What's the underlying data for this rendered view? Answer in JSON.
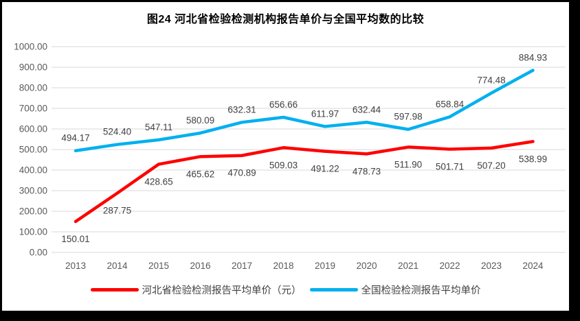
{
  "style": {
    "frame_border_color": "#000000",
    "background_color": "#ffffff",
    "grid_color": "#d9d9d9",
    "tick_text_color": "#595959",
    "data_label_color": "#404040",
    "title_color": "#000000"
  },
  "chart_data": {
    "type": "line",
    "title": "图24 河北省检验检测机构报告单价与全国平均数的比较",
    "categories": [
      "2013",
      "2014",
      "2015",
      "2016",
      "2017",
      "2018",
      "2019",
      "2020",
      "2021",
      "2022",
      "2023",
      "2024"
    ],
    "series": [
      {
        "name": "河北省检验检测报告平均单价（元）",
        "color": "#ff0000",
        "label_position": "below",
        "values": [
          150.01,
          287.75,
          428.65,
          465.62,
          470.89,
          509.03,
          491.22,
          478.73,
          511.9,
          501.71,
          507.2,
          538.99
        ]
      },
      {
        "name": "全国检验检测报告平均单价",
        "color": "#00b0f0",
        "label_position": "above",
        "values": [
          494.17,
          524.4,
          547.11,
          580.09,
          632.31,
          656.66,
          611.97,
          632.44,
          597.98,
          658.84,
          774.48,
          884.93
        ]
      }
    ],
    "ylim": [
      0,
      1000
    ],
    "yticks": [
      "0.00",
      "100.00",
      "200.00",
      "300.00",
      "400.00",
      "500.00",
      "600.00",
      "700.00",
      "800.00",
      "900.00",
      "1000.00"
    ],
    "grid": "horizontal",
    "data_labels": true,
    "label_decimals": 2,
    "legend_position": "bottom"
  }
}
